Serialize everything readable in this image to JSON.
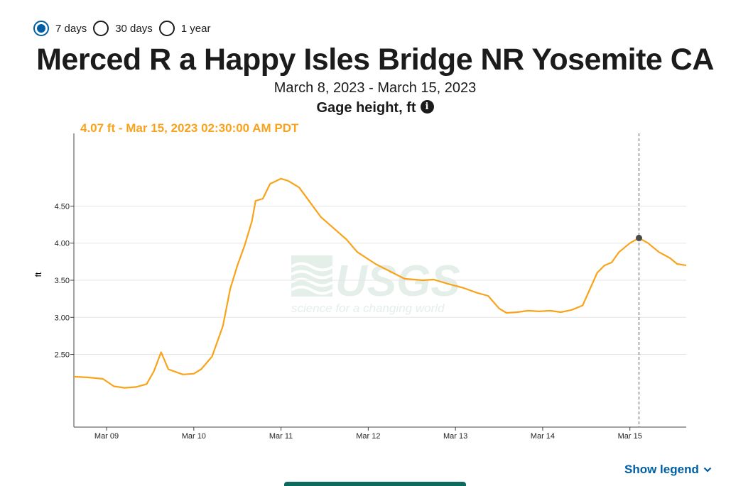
{
  "period_options": [
    {
      "label": "7 days",
      "selected": true
    },
    {
      "label": "30 days",
      "selected": false
    },
    {
      "label": "1 year",
      "selected": false
    }
  ],
  "title": "Merced R a Happy Isles Bridge NR Yosemite CA",
  "date_range": "March 8, 2023 - March 15, 2023",
  "parameter": "Gage height, ft",
  "tooltip": "4.07 ft - Mar 15, 2023 02:30:00 AM PDT",
  "show_legend": "Show legend",
  "watermark": {
    "logo": "USGS",
    "tagline": "science for a changing world"
  },
  "colors": {
    "series": "#f9a31b",
    "accent": "#005ea2",
    "grid": "#e5e5e5",
    "axis": "#444444",
    "cursor_point": "#4a4a4a"
  },
  "icons": {
    "info": "info-icon",
    "chevron": "chevron-down-icon"
  },
  "chart_data": {
    "type": "line",
    "title": "Merced R a Happy Isles Bridge NR Yosemite CA",
    "xlabel": "",
    "ylabel": "ft",
    "x_ticks": [
      "Mar 09",
      "Mar 10",
      "Mar 11",
      "Mar 12",
      "Mar 13",
      "Mar 14",
      "Mar 15"
    ],
    "y_ticks": [
      2.5,
      3.0,
      3.5,
      4.0,
      4.5
    ],
    "y_tick_labels": [
      "2.50",
      "3.00",
      "3.50",
      "4.00",
      "4.50"
    ],
    "xlim": [
      "2023-03-08T15:00",
      "2023-03-15T15:30"
    ],
    "ylim": [
      1.52,
      5.48
    ],
    "grid": true,
    "series": [
      {
        "name": "Gage height, ft",
        "points": [
          [
            "2023-03-08T15:00",
            2.2
          ],
          [
            "2023-03-08T19:00",
            2.19
          ],
          [
            "2023-03-08T23:00",
            2.17
          ],
          [
            "2023-03-09T02:00",
            2.07
          ],
          [
            "2023-03-09T05:00",
            2.05
          ],
          [
            "2023-03-09T08:00",
            2.06
          ],
          [
            "2023-03-09T11:00",
            2.1
          ],
          [
            "2023-03-09T13:00",
            2.27
          ],
          [
            "2023-03-09T15:00",
            2.53
          ],
          [
            "2023-03-09T17:00",
            2.3
          ],
          [
            "2023-03-09T21:00",
            2.23
          ],
          [
            "2023-03-10T00:00",
            2.24
          ],
          [
            "2023-03-10T02:00",
            2.3
          ],
          [
            "2023-03-10T05:00",
            2.47
          ],
          [
            "2023-03-10T08:00",
            2.88
          ],
          [
            "2023-03-10T10:00",
            3.38
          ],
          [
            "2023-03-10T12:00",
            3.7
          ],
          [
            "2023-03-10T14:00",
            3.97
          ],
          [
            "2023-03-10T16:00",
            4.3
          ],
          [
            "2023-03-10T17:00",
            4.57
          ],
          [
            "2023-03-10T19:00",
            4.6
          ],
          [
            "2023-03-10T21:00",
            4.8
          ],
          [
            "2023-03-11T00:00",
            4.87
          ],
          [
            "2023-03-11T02:00",
            4.84
          ],
          [
            "2023-03-11T05:00",
            4.75
          ],
          [
            "2023-03-11T08:00",
            4.55
          ],
          [
            "2023-03-11T11:00",
            4.35
          ],
          [
            "2023-03-11T15:00",
            4.18
          ],
          [
            "2023-03-11T18:00",
            4.05
          ],
          [
            "2023-03-11T21:00",
            3.88
          ],
          [
            "2023-03-12T02:00",
            3.72
          ],
          [
            "2023-03-12T06:00",
            3.62
          ],
          [
            "2023-03-12T10:00",
            3.52
          ],
          [
            "2023-03-12T15:00",
            3.5
          ],
          [
            "2023-03-12T18:00",
            3.51
          ],
          [
            "2023-03-12T22:00",
            3.45
          ],
          [
            "2023-03-13T02:00",
            3.4
          ],
          [
            "2023-03-13T06:00",
            3.33
          ],
          [
            "2023-03-13T09:00",
            3.29
          ],
          [
            "2023-03-13T12:00",
            3.12
          ],
          [
            "2023-03-13T14:00",
            3.06
          ],
          [
            "2023-03-13T17:00",
            3.07
          ],
          [
            "2023-03-13T20:00",
            3.09
          ],
          [
            "2023-03-13T23:00",
            3.08
          ],
          [
            "2023-03-14T02:00",
            3.09
          ],
          [
            "2023-03-14T05:00",
            3.07
          ],
          [
            "2023-03-14T08:00",
            3.1
          ],
          [
            "2023-03-14T11:00",
            3.16
          ],
          [
            "2023-03-14T13:00",
            3.38
          ],
          [
            "2023-03-14T15:00",
            3.6
          ],
          [
            "2023-03-14T17:00",
            3.7
          ],
          [
            "2023-03-14T19:00",
            3.74
          ],
          [
            "2023-03-14T21:00",
            3.88
          ],
          [
            "2023-03-15T00:00",
            4.0
          ],
          [
            "2023-03-15T02:30",
            4.07
          ],
          [
            "2023-03-15T05:00",
            4.0
          ],
          [
            "2023-03-15T08:00",
            3.88
          ],
          [
            "2023-03-15T11:00",
            3.8
          ],
          [
            "2023-03-15T13:00",
            3.72
          ],
          [
            "2023-03-15T15:30",
            3.7
          ]
        ]
      }
    ],
    "highlight": {
      "x": "2023-03-15T02:30",
      "y": 4.07
    }
  }
}
